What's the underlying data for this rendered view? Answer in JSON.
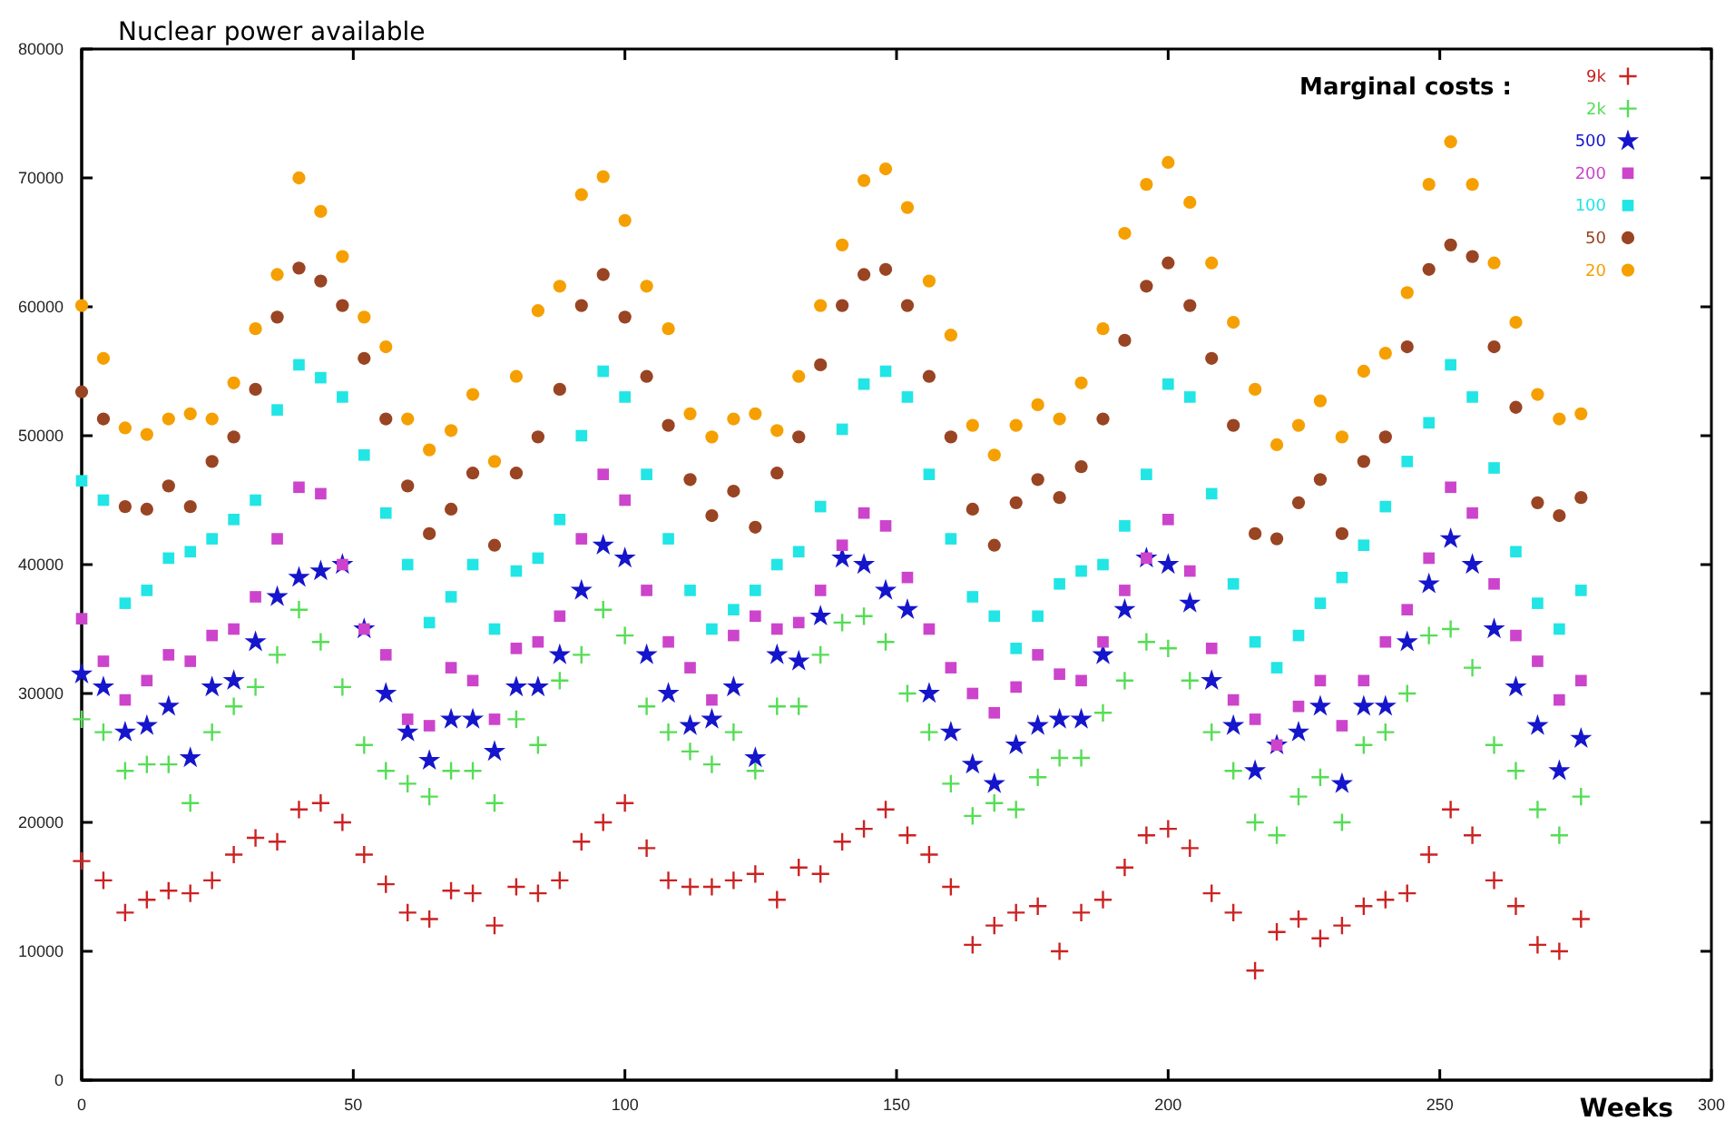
{
  "chart_data": {
    "type": "scatter",
    "title": "Nuclear power available",
    "xlabel": "Weeks",
    "legend_title": "Marginal costs :",
    "legend": "top right",
    "grid": false,
    "xlim": [
      0,
      300
    ],
    "xticks": [
      0,
      50,
      100,
      150,
      200,
      250,
      300
    ],
    "ylim": [
      0,
      80000
    ],
    "yticks": [
      0,
      10000,
      20000,
      30000,
      40000,
      50000,
      60000,
      70000,
      80000
    ],
    "x": [
      0,
      4,
      8,
      12,
      16,
      20,
      24,
      28,
      32,
      36,
      40,
      44,
      48,
      52,
      56,
      60,
      64,
      68,
      72,
      76,
      80,
      84,
      88,
      92,
      96,
      100,
      104,
      108,
      112,
      116,
      120,
      124,
      128,
      132,
      136,
      140,
      144,
      148,
      152,
      156,
      160,
      164,
      168,
      172,
      176,
      180,
      184,
      188,
      192,
      196,
      200,
      204,
      208,
      212,
      216,
      220,
      224,
      228,
      232,
      236,
      240,
      244,
      248,
      252,
      256,
      260,
      264,
      268,
      272,
      276
    ],
    "series": [
      {
        "name": "9k",
        "color": "#cc2222",
        "marker": "cross",
        "values": [
          17000,
          15500,
          13000,
          14000,
          14700,
          14500,
          15500,
          17500,
          18800,
          18500,
          21000,
          21500,
          20000,
          17500,
          15200,
          13000,
          12500,
          14700,
          14500,
          12000,
          15000,
          14500,
          15500,
          18500,
          20000,
          21500,
          18000,
          15500,
          15000,
          15000,
          15500,
          16000,
          14000,
          16500,
          16000,
          18500,
          19500,
          21000,
          19000,
          17500,
          15000,
          10500,
          12000,
          13000,
          13500,
          10000,
          13000,
          14000,
          16500,
          19000,
          19500,
          18000,
          14500,
          13000,
          8500,
          11500,
          12500,
          11000,
          12000,
          13500,
          14000,
          14500,
          17500,
          21000,
          19000,
          15500,
          13500,
          10500,
          10000,
          12500
        ]
      },
      {
        "name": "2k",
        "color": "#55dd55",
        "marker": "cross",
        "values": [
          28000,
          27000,
          24000,
          24500,
          24500,
          21500,
          27000,
          29000,
          30500,
          33000,
          36500,
          34000,
          30500,
          26000,
          24000,
          23000,
          22000,
          24000,
          24000,
          21500,
          28000,
          26000,
          31000,
          33000,
          36500,
          34500,
          29000,
          27000,
          25500,
          24500,
          27000,
          24000,
          29000,
          29000,
          33000,
          35500,
          36000,
          34000,
          30000,
          27000,
          23000,
          20500,
          21500,
          21000,
          23500,
          25000,
          25000,
          28500,
          31000,
          34000,
          33500,
          31000,
          27000,
          24000,
          20000,
          19000,
          22000,
          23500,
          20000,
          26000,
          27000,
          30000,
          34500,
          35000,
          32000,
          26000,
          24000,
          21000,
          19000,
          22000
        ]
      },
      {
        "name": "500",
        "color": "#1515cc",
        "marker": "star",
        "values": [
          31500,
          30500,
          27000,
          27500,
          29000,
          25000,
          30500,
          31000,
          34000,
          37500,
          39000,
          39500,
          40000,
          35000,
          30000,
          27000,
          24800,
          28000,
          28000,
          25500,
          30500,
          30500,
          33000,
          38000,
          41500,
          40500,
          33000,
          30000,
          27500,
          28000,
          30500,
          25000,
          33000,
          32500,
          36000,
          40500,
          40000,
          38000,
          36500,
          30000,
          27000,
          24500,
          23000,
          26000,
          27500,
          28000,
          28000,
          33000,
          36500,
          40500,
          40000,
          37000,
          31000,
          27500,
          24000,
          26000,
          27000,
          29000,
          23000,
          29000,
          29000,
          34000,
          38500,
          42000,
          40000,
          35000,
          30500,
          27500,
          24000,
          26500
        ]
      },
      {
        "name": "200",
        "color": "#cc44cc",
        "marker": "square",
        "values": [
          35800,
          32500,
          29500,
          31000,
          33000,
          32500,
          34500,
          35000,
          37500,
          42000,
          46000,
          45500,
          40000,
          35000,
          33000,
          28000,
          27500,
          32000,
          31000,
          28000,
          33500,
          34000,
          36000,
          42000,
          47000,
          45000,
          38000,
          34000,
          32000,
          29500,
          34500,
          36000,
          35000,
          35500,
          38000,
          41500,
          44000,
          43000,
          39000,
          35000,
          32000,
          30000,
          28500,
          30500,
          33000,
          31500,
          31000,
          34000,
          38000,
          40500,
          43500,
          39500,
          33500,
          29500,
          28000,
          26000,
          29000,
          31000,
          27500,
          31000,
          34000,
          36500,
          40500,
          46000,
          44000,
          38500,
          34500,
          32500,
          29500,
          31000
        ]
      },
      {
        "name": "100",
        "color": "#22e5e5",
        "marker": "square",
        "values": [
          46500,
          45000,
          37000,
          38000,
          40500,
          41000,
          42000,
          43500,
          45000,
          52000,
          55500,
          54500,
          53000,
          48500,
          44000,
          40000,
          35500,
          37500,
          40000,
          35000,
          39500,
          40500,
          43500,
          50000,
          55000,
          53000,
          47000,
          42000,
          38000,
          35000,
          36500,
          38000,
          40000,
          41000,
          44500,
          50500,
          54000,
          55000,
          53000,
          47000,
          42000,
          37500,
          36000,
          33500,
          36000,
          38500,
          39500,
          40000,
          43000,
          47000,
          54000,
          53000,
          45500,
          38500,
          34000,
          32000,
          34500,
          37000,
          39000,
          41500,
          44500,
          48000,
          51000,
          55500,
          53000,
          47500,
          41000,
          37000,
          35000,
          38000
        ]
      },
      {
        "name": "50",
        "color": "#994422",
        "marker": "circle",
        "values": [
          53400,
          51300,
          44500,
          44300,
          46100,
          44500,
          48000,
          49900,
          53600,
          59200,
          63000,
          62000,
          60100,
          56000,
          51300,
          46100,
          42400,
          44300,
          47100,
          41500,
          47100,
          49900,
          53600,
          60100,
          62500,
          59200,
          54600,
          50800,
          46600,
          43800,
          45700,
          42900,
          47100,
          49900,
          55500,
          60100,
          62500,
          62900,
          60100,
          54600,
          49900,
          44300,
          41500,
          44800,
          46600,
          45200,
          47600,
          51300,
          57400,
          61600,
          63400,
          60100,
          56000,
          50800,
          42400,
          42000,
          44800,
          46600,
          42400,
          48000,
          49900,
          56900,
          62900,
          64800,
          63900,
          56900,
          52200,
          44800,
          43800,
          45200
        ]
      },
      {
        "name": "20",
        "color": "#f5a000",
        "marker": "circle",
        "values": [
          60100,
          56000,
          50600,
          50100,
          51300,
          51700,
          51300,
          54100,
          58300,
          62500,
          70000,
          67400,
          63900,
          59200,
          56900,
          51300,
          48900,
          50400,
          53200,
          48000,
          54600,
          59700,
          61600,
          68700,
          70100,
          66700,
          61600,
          58300,
          51700,
          49900,
          51300,
          51700,
          50400,
          54600,
          60100,
          64800,
          69800,
          70700,
          67700,
          62000,
          57800,
          50800,
          48500,
          50800,
          52400,
          51300,
          54100,
          58300,
          65700,
          69500,
          71200,
          68100,
          63400,
          58800,
          53600,
          49300,
          50800,
          52700,
          49900,
          55000,
          56400,
          61100,
          69500,
          72800,
          69500,
          63400,
          58800,
          53200,
          51300,
          51700
        ]
      }
    ]
  }
}
